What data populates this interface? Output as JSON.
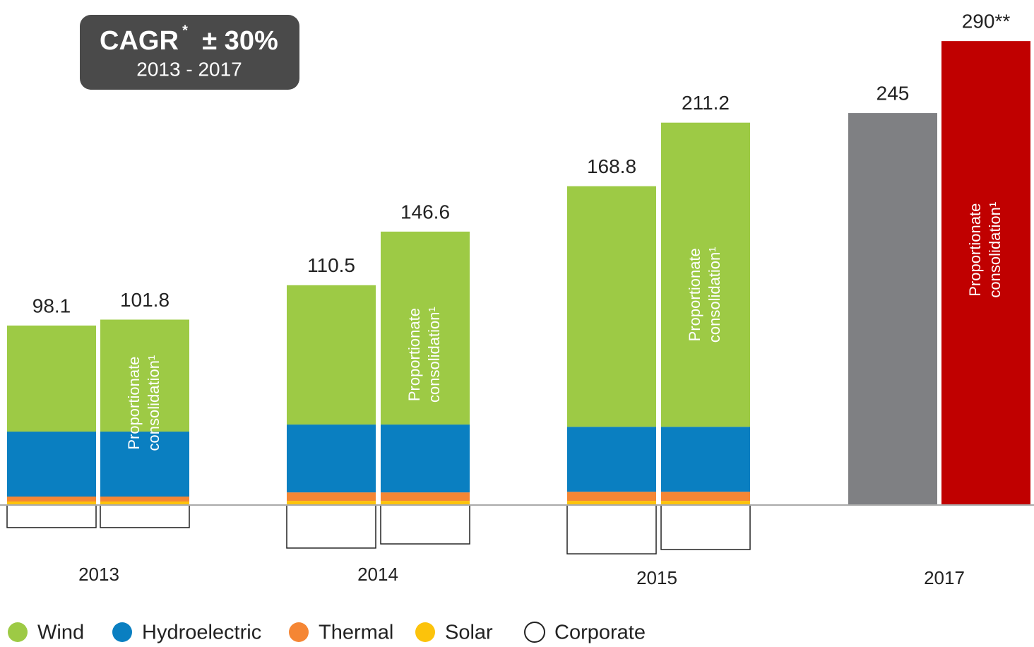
{
  "chart_data": {
    "type": "bar",
    "stacked": true,
    "badge": {
      "title": "CAGR",
      "mark": "*",
      "value": "± 30%",
      "period": "2013 - 2017"
    },
    "groups": [
      "2013",
      "2014",
      "2015",
      "2017"
    ],
    "series": [
      {
        "name": "Wind",
        "color": "#9dca45",
        "values": [
          66.3,
          70.0,
          87.1,
          120.6,
          150.4,
          190.1,
          null,
          null
        ]
      },
      {
        "name": "Hydroelectric",
        "color": "#0a7fc1",
        "values": [
          40.6,
          40.6,
          42.4,
          42.4,
          40.6,
          40.6,
          null,
          null
        ]
      },
      {
        "name": "Thermal",
        "color": "#f58634",
        "values": [
          3.1,
          3.1,
          5.3,
          5.3,
          5.7,
          5.7,
          null,
          null
        ]
      },
      {
        "name": "Solar",
        "color": "#fcc30b",
        "values": [
          2.2,
          2.2,
          2.6,
          2.6,
          2.6,
          2.6,
          null,
          null
        ]
      },
      {
        "name": "Corporate",
        "color": "#ffffff",
        "values": [
          -14.1,
          -14.1,
          -26.9,
          -24.3,
          -30.5,
          -27.8,
          null,
          null
        ]
      }
    ],
    "totals": {
      "values": [
        98.1,
        101.8,
        110.5,
        146.6,
        168.8,
        211.2,
        245,
        290
      ],
      "value_labels": [
        "98.1",
        "101.8",
        "110.5",
        "146.6",
        "168.8",
        "211.2",
        "245",
        "290**"
      ],
      "colors": [
        null,
        null,
        null,
        null,
        null,
        null,
        "#7f8083",
        "#c00000"
      ]
    },
    "bar_annotation": {
      "lines": [
        "Proportionate",
        "consolidation¹"
      ]
    }
  }
}
